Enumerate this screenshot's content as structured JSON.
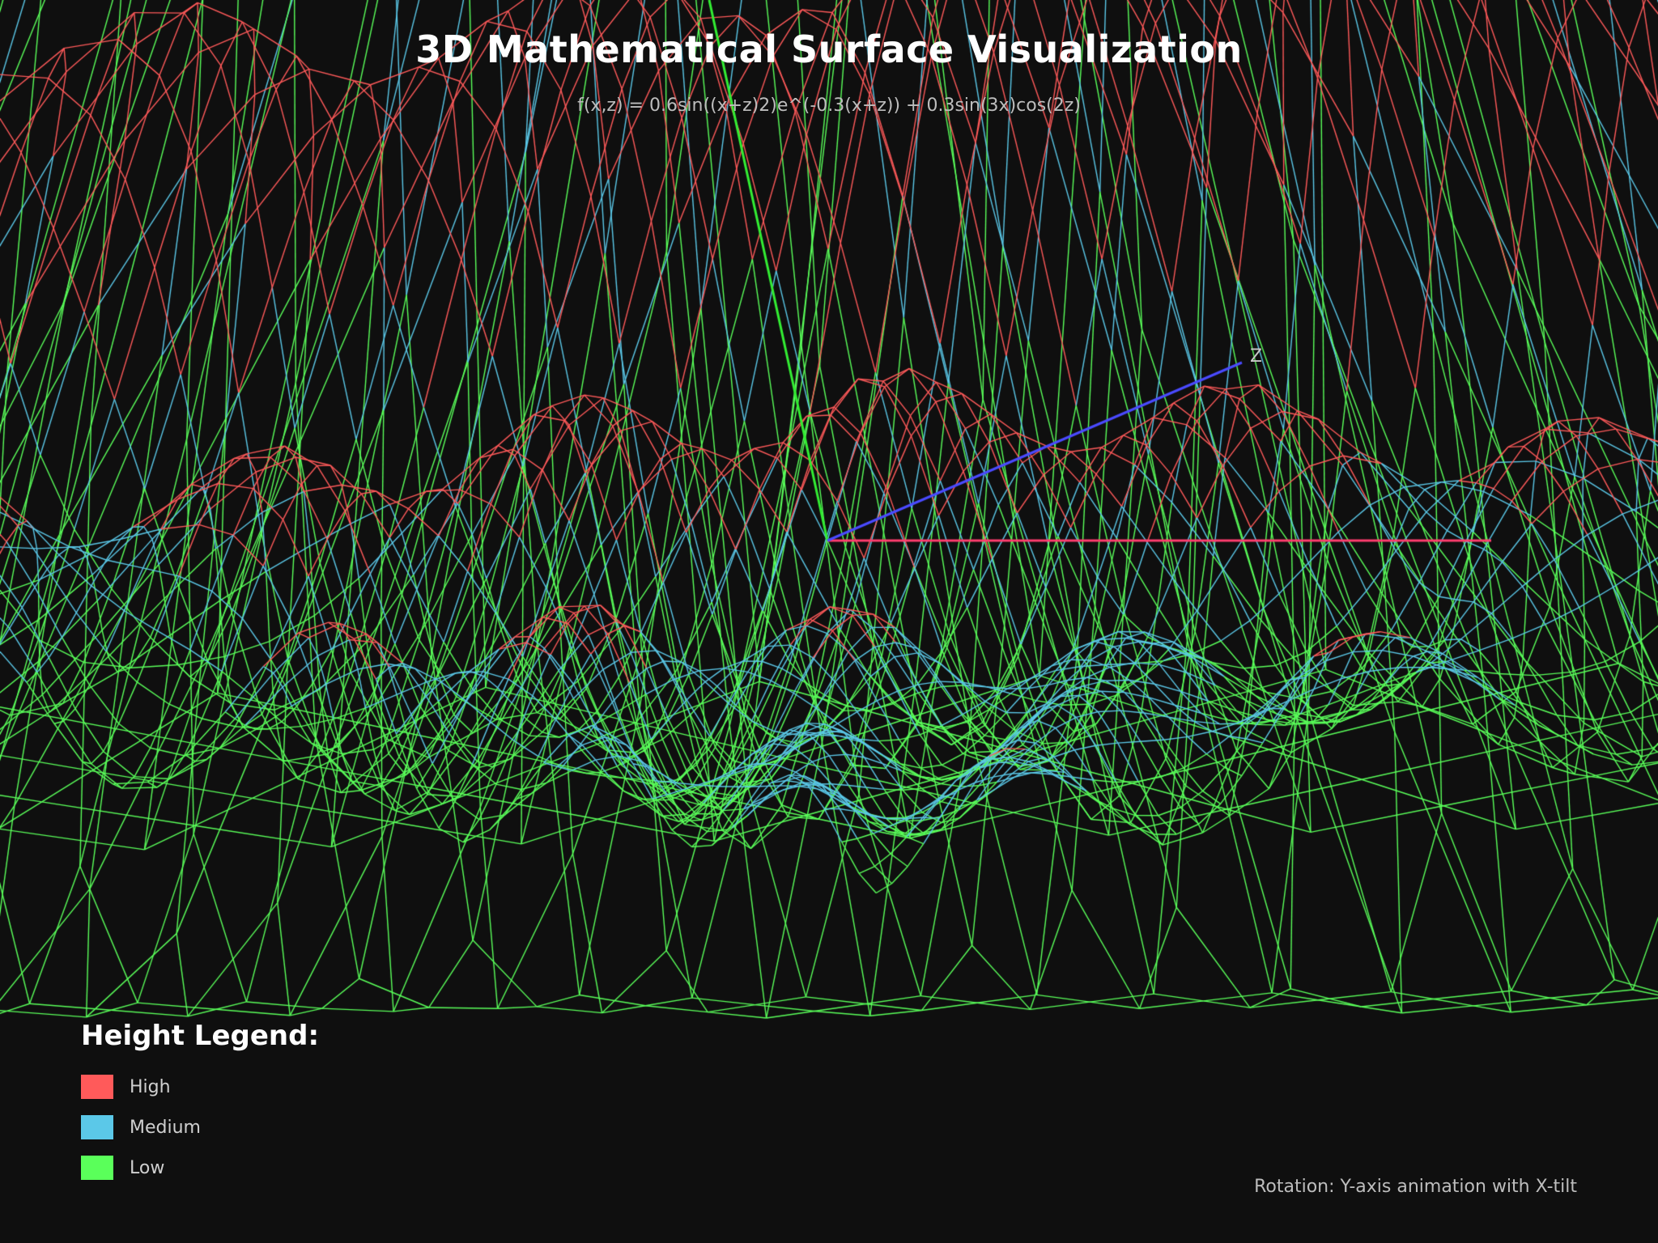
{
  "title": "3D Mathematical Surface Visualization",
  "formula": "f(x,z) = 0.6sin((x+z)2)e^(-0.3(x+z)) + 0.3sin(3x)cos(2z)",
  "axes": {
    "x_label": "",
    "y_label": "",
    "z_label": "Z",
    "x_color": "#ff3d6e",
    "y_color": "#33ee33",
    "z_color": "#4a4aff"
  },
  "legend": {
    "title": "Height Legend:",
    "items": [
      {
        "label": "High",
        "color": "#ff5a5a"
      },
      {
        "label": "Medium",
        "color": "#5bc8e8"
      },
      {
        "label": "Low",
        "color": "#5aff5a"
      }
    ]
  },
  "footnote": "Rotation: Y-axis animation with X-tilt",
  "background": "#0f0f0f"
}
